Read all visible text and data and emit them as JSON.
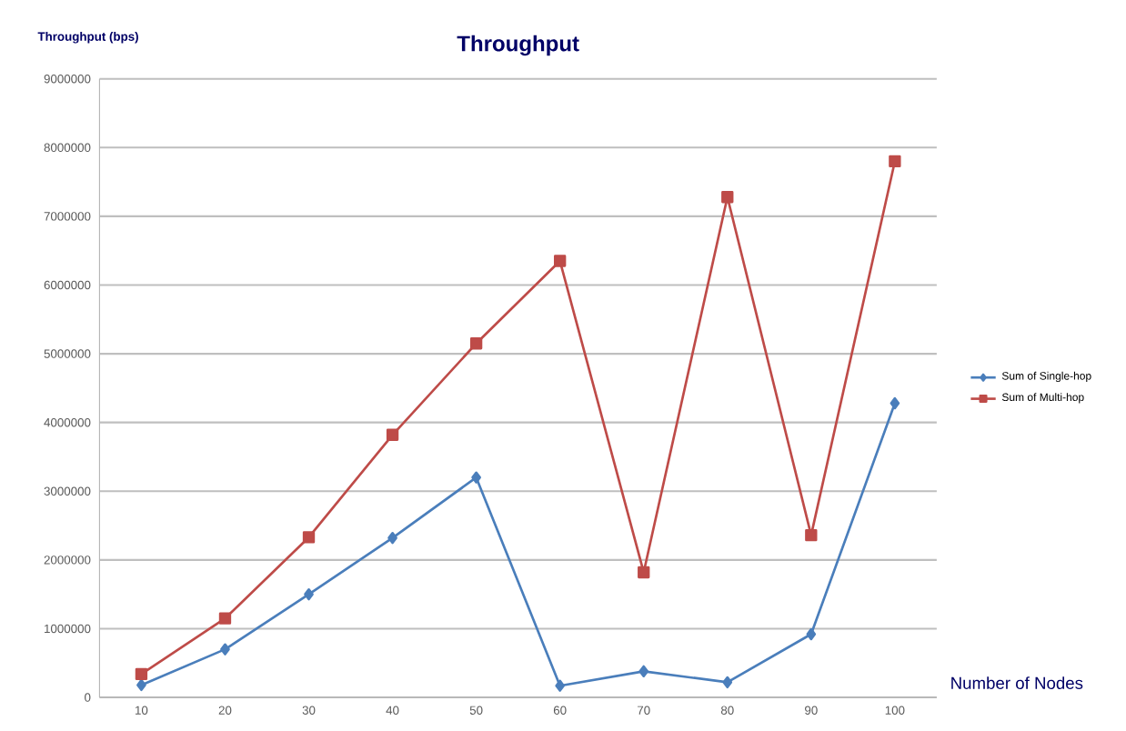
{
  "chart_data": {
    "type": "line",
    "title": "Throughput",
    "xlabel": "Number of Nodes",
    "ylabel": "Throughput (bps)",
    "categories": [
      "10",
      "20",
      "30",
      "40",
      "50",
      "60",
      "70",
      "80",
      "90",
      "100"
    ],
    "series": [
      {
        "name": "Sum of Single-hop",
        "color": "#4a7ebb",
        "marker": "diamond",
        "values": [
          180000,
          700000,
          1500000,
          2320000,
          3200000,
          170000,
          380000,
          220000,
          920000,
          4280000
        ]
      },
      {
        "name": "Sum of Multi-hop",
        "color": "#be4b48",
        "marker": "square",
        "values": [
          340000,
          1150000,
          2330000,
          3820000,
          5150000,
          6350000,
          1820000,
          7280000,
          2360000,
          7800000
        ]
      }
    ],
    "ylim": [
      0,
      9000000
    ],
    "yticks": [
      0,
      1000000,
      2000000,
      3000000,
      4000000,
      5000000,
      6000000,
      7000000,
      8000000,
      9000000
    ],
    "grid": "y",
    "legend": "right",
    "line_style": "solid"
  }
}
